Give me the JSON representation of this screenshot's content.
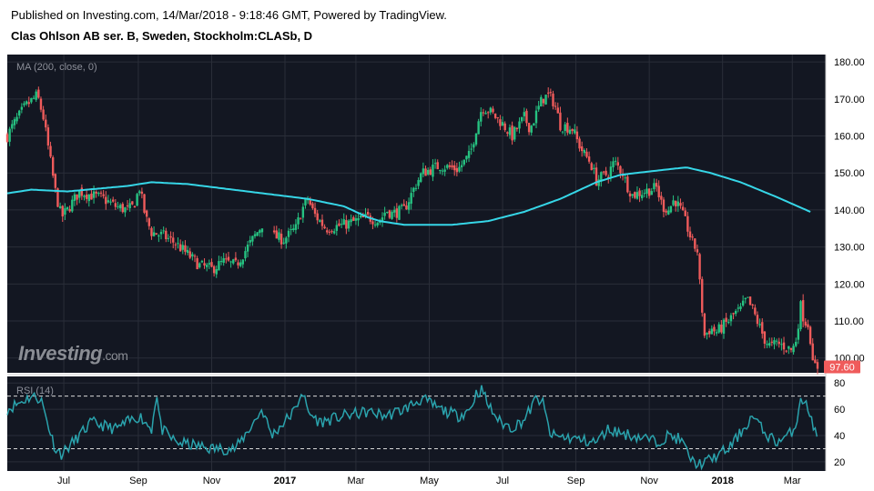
{
  "header": {
    "published": "Published on Investing.com, 14/Mar/2018 - 9:18:46 GMT, Powered by TradingView.",
    "instrument": "Clas Ohlson AB ser. B, Sweden, Stockholm:CLASb, D"
  },
  "logo": {
    "text": "Investing",
    "suffix": ".com"
  },
  "colors": {
    "background": "#131722",
    "up": "#26c281",
    "down": "#ef5b5b",
    "ma": "#36d6e7",
    "rsi": "#2aa3ad",
    "grid": "#2a2e39",
    "last_badge": "#ef5b5b"
  },
  "chart_data": [
    {
      "type": "candlestick",
      "title": "MA (200, close, 0)",
      "ylim": [
        96,
        182
      ],
      "yticks": [
        "180.00",
        "170.00",
        "160.00",
        "150.00",
        "140.00",
        "130.00",
        "120.00",
        "110.00",
        "100.00"
      ],
      "ytick_values": [
        180,
        170,
        160,
        150,
        140,
        130,
        120,
        110,
        100
      ],
      "last_price": "97.60",
      "x_ticks": [
        "Jul",
        "Sep",
        "Nov",
        "2017",
        "Mar",
        "May",
        "Jul",
        "Sep",
        "Nov",
        "2018",
        "Mar"
      ],
      "x_tick_days": [
        47,
        109,
        170,
        231,
        290,
        351,
        412,
        473,
        534,
        595,
        653
      ],
      "x_days_total": 674,
      "close_keypoints": [
        [
          0,
          160
        ],
        [
          5,
          163
        ],
        [
          15,
          168
        ],
        [
          25,
          171
        ],
        [
          30,
          165
        ],
        [
          35,
          155
        ],
        [
          40,
          145
        ],
        [
          45,
          138
        ],
        [
          50,
          140
        ],
        [
          60,
          145
        ],
        [
          70,
          144
        ],
        [
          80,
          143
        ],
        [
          90,
          141
        ],
        [
          100,
          140
        ],
        [
          105,
          141
        ],
        [
          110,
          146
        ],
        [
          115,
          138
        ],
        [
          120,
          134
        ],
        [
          130,
          133
        ],
        [
          140,
          131
        ],
        [
          150,
          128
        ],
        [
          160,
          125
        ],
        [
          170,
          124
        ],
        [
          180,
          126
        ],
        [
          190,
          125
        ],
        [
          200,
          130
        ],
        [
          210,
          135
        ],
        [
          215,
          138
        ],
        [
          220,
          133
        ],
        [
          230,
          132
        ],
        [
          240,
          135
        ],
        [
          245,
          140
        ],
        [
          250,
          143
        ],
        [
          255,
          139
        ],
        [
          265,
          135
        ],
        [
          280,
          136
        ],
        [
          290,
          137
        ],
        [
          300,
          138
        ],
        [
          310,
          137
        ],
        [
          315,
          140
        ],
        [
          320,
          139
        ],
        [
          330,
          140
        ],
        [
          340,
          147
        ],
        [
          345,
          150
        ],
        [
          360,
          152
        ],
        [
          375,
          151
        ],
        [
          385,
          155
        ],
        [
          390,
          162
        ],
        [
          395,
          168
        ],
        [
          400,
          167
        ],
        [
          410,
          164
        ],
        [
          420,
          160
        ],
        [
          430,
          165
        ],
        [
          435,
          162
        ],
        [
          440,
          166
        ],
        [
          445,
          170
        ],
        [
          450,
          171
        ],
        [
          455,
          169
        ],
        [
          460,
          163
        ],
        [
          470,
          162
        ],
        [
          475,
          158
        ],
        [
          480,
          155
        ],
        [
          485,
          153
        ],
        [
          490,
          148
        ],
        [
          500,
          150
        ],
        [
          505,
          153
        ],
        [
          512,
          150
        ],
        [
          515,
          147
        ],
        [
          520,
          144
        ],
        [
          530,
          145
        ],
        [
          540,
          146
        ],
        [
          545,
          141
        ],
        [
          550,
          140
        ],
        [
          555,
          143
        ],
        [
          560,
          140
        ],
        [
          565,
          136
        ],
        [
          570,
          131
        ],
        [
          574,
          129
        ],
        [
          576,
          120
        ],
        [
          580,
          106
        ],
        [
          585,
          108
        ],
        [
          590,
          107
        ],
        [
          600,
          110
        ],
        [
          605,
          112
        ],
        [
          610,
          113
        ],
        [
          615,
          116
        ],
        [
          620,
          113
        ],
        [
          625,
          109
        ],
        [
          630,
          105
        ],
        [
          635,
          103
        ],
        [
          640,
          104
        ],
        [
          648,
          103
        ],
        [
          653,
          102
        ],
        [
          656,
          105
        ],
        [
          660,
          114
        ],
        [
          663,
          110
        ],
        [
          667,
          109
        ],
        [
          670,
          98
        ],
        [
          674,
          97.6
        ]
      ],
      "gaps": [
        [
          214,
          220
        ]
      ],
      "ma_keypoints": [
        [
          0,
          144.5
        ],
        [
          20,
          145.5
        ],
        [
          50,
          145
        ],
        [
          100,
          146.5
        ],
        [
          120,
          147.5
        ],
        [
          150,
          147
        ],
        [
          200,
          145
        ],
        [
          250,
          143
        ],
        [
          280,
          141
        ],
        [
          300,
          138
        ],
        [
          310,
          137
        ],
        [
          330,
          136
        ],
        [
          370,
          136
        ],
        [
          400,
          137
        ],
        [
          430,
          139.5
        ],
        [
          460,
          143
        ],
        [
          490,
          147.5
        ],
        [
          510,
          149.5
        ],
        [
          550,
          151
        ],
        [
          565,
          151.5
        ],
        [
          585,
          150
        ],
        [
          610,
          147.5
        ],
        [
          640,
          143.5
        ],
        [
          668,
          139.5
        ]
      ]
    },
    {
      "type": "line",
      "title": "RSI (14)",
      "ylim": [
        13,
        85
      ],
      "yticks": [
        "80",
        "60",
        "40",
        "20"
      ],
      "ytick_values": [
        80,
        60,
        40,
        20
      ],
      "bands": [
        70,
        30
      ],
      "keypoints": [
        [
          0,
          60
        ],
        [
          10,
          65
        ],
        [
          20,
          70
        ],
        [
          28,
          68
        ],
        [
          34,
          48
        ],
        [
          40,
          30
        ],
        [
          45,
          26
        ],
        [
          55,
          35
        ],
        [
          70,
          50
        ],
        [
          90,
          45
        ],
        [
          110,
          55
        ],
        [
          120,
          45
        ],
        [
          124,
          72
        ],
        [
          128,
          45
        ],
        [
          140,
          35
        ],
        [
          170,
          30
        ],
        [
          190,
          30
        ],
        [
          205,
          50
        ],
        [
          212,
          60
        ],
        [
          220,
          40
        ],
        [
          240,
          60
        ],
        [
          245,
          75
        ],
        [
          250,
          58
        ],
        [
          260,
          50
        ],
        [
          280,
          55
        ],
        [
          300,
          58
        ],
        [
          315,
          55
        ],
        [
          330,
          60
        ],
        [
          345,
          68
        ],
        [
          360,
          60
        ],
        [
          375,
          55
        ],
        [
          385,
          60
        ],
        [
          390,
          72
        ],
        [
          395,
          75
        ],
        [
          400,
          63
        ],
        [
          410,
          50
        ],
        [
          420,
          46
        ],
        [
          430,
          52
        ],
        [
          440,
          68
        ],
        [
          445,
          66
        ],
        [
          452,
          40
        ],
        [
          470,
          38
        ],
        [
          480,
          36
        ],
        [
          490,
          35
        ],
        [
          500,
          45
        ],
        [
          510,
          42
        ],
        [
          520,
          40
        ],
        [
          530,
          38
        ],
        [
          540,
          35
        ],
        [
          550,
          40
        ],
        [
          560,
          37
        ],
        [
          570,
          20
        ],
        [
          578,
          18
        ],
        [
          585,
          22
        ],
        [
          600,
          30
        ],
        [
          610,
          42
        ],
        [
          620,
          55
        ],
        [
          630,
          42
        ],
        [
          640,
          35
        ],
        [
          650,
          40
        ],
        [
          656,
          48
        ],
        [
          660,
          70
        ],
        [
          665,
          62
        ],
        [
          670,
          50
        ],
        [
          674,
          35
        ]
      ]
    }
  ]
}
